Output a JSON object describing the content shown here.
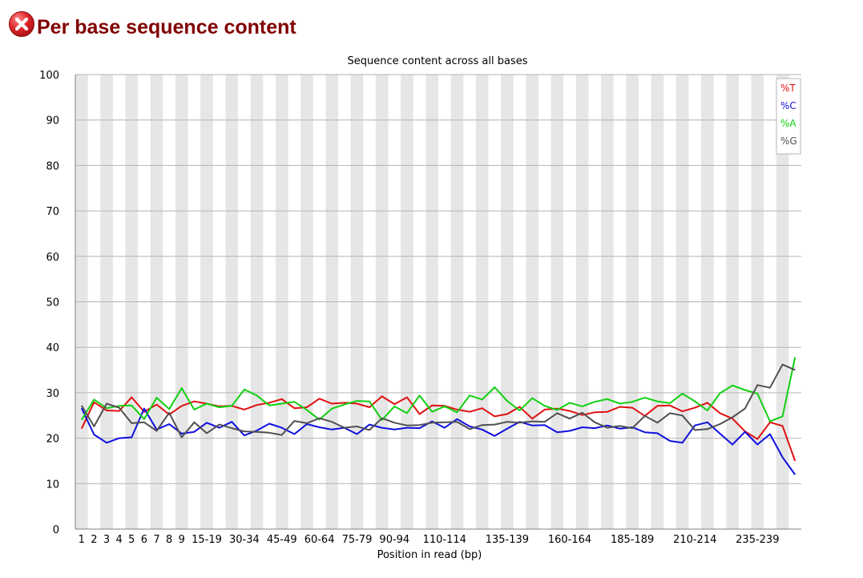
{
  "header": {
    "status": "fail",
    "status_icon": "error-cross-icon",
    "status_color": "#e0262b",
    "title": "Per base sequence content"
  },
  "chart_data": {
    "type": "line",
    "title": "Sequence content across all bases",
    "xlabel": "Position in read (bp)",
    "ylabel": "",
    "ylim": [
      0,
      100
    ],
    "yticks": [
      0,
      10,
      20,
      30,
      40,
      50,
      60,
      70,
      80,
      90,
      100
    ],
    "grid": true,
    "legend_position": "top-right",
    "categories": [
      "1",
      "2",
      "3",
      "4",
      "5",
      "6",
      "7",
      "8",
      "9",
      "10-14",
      "15-19",
      "20-24",
      "25-29",
      "30-34",
      "35-39",
      "40-44",
      "45-49",
      "50-54",
      "55-59",
      "60-64",
      "65-69",
      "70-74",
      "75-79",
      "80-84",
      "85-89",
      "90-94",
      "95-99",
      "100-104",
      "105-109",
      "110-114",
      "115-119",
      "120-124",
      "125-129",
      "130-134",
      "135-139",
      "140-144",
      "145-149",
      "150-154",
      "155-159",
      "160-164",
      "165-169",
      "170-174",
      "175-179",
      "180-184",
      "185-189",
      "190-194",
      "195-199",
      "200-204",
      "205-209",
      "210-214",
      "215-219",
      "220-224",
      "225-229",
      "230-234",
      "235-239",
      "240-244",
      "245-249",
      "250-251"
    ],
    "tick_labels": [
      "1",
      "2",
      "3",
      "4",
      "5",
      "6",
      "7",
      "8",
      "9",
      "15-19",
      "30-34",
      "45-49",
      "60-64",
      "75-79",
      "90-94",
      "110-114",
      "135-139",
      "160-164",
      "185-189",
      "210-214",
      "235-239"
    ],
    "series": [
      {
        "name": "%T",
        "color": "#e01010",
        "values": [
          22.1,
          27.9,
          26.1,
          26.0,
          29.0,
          25.8,
          27.4,
          25.2,
          27.1,
          28.1,
          27.6,
          27.0,
          27.1,
          26.3,
          27.3,
          27.8,
          28.6,
          26.6,
          26.8,
          28.7,
          27.6,
          27.8,
          27.6,
          26.8,
          29.2,
          27.5,
          29.0,
          25.3,
          27.2,
          27.1,
          26.3,
          25.8,
          26.6,
          24.8,
          25.3,
          26.9,
          24.3,
          26.3,
          26.5,
          26.0,
          25.1,
          25.7,
          25.8,
          26.9,
          26.7,
          24.9,
          27.1,
          27.2,
          25.9,
          26.7,
          27.8,
          25.5,
          24.3,
          21.5,
          19.8,
          23.5,
          22.7,
          15.0
        ]
      },
      {
        "name": "%C",
        "color": "#1010e0",
        "values": [
          26.6,
          20.8,
          19.0,
          20.0,
          20.2,
          26.5,
          21.9,
          23.1,
          21.0,
          21.4,
          23.4,
          22.3,
          23.6,
          20.6,
          21.7,
          23.2,
          22.3,
          20.9,
          23.1,
          22.4,
          21.9,
          22.3,
          20.9,
          23.0,
          22.3,
          21.9,
          22.3,
          22.2,
          23.7,
          22.3,
          24.2,
          22.6,
          21.9,
          20.5,
          22.1,
          23.6,
          22.8,
          22.9,
          21.3,
          21.6,
          22.4,
          22.2,
          22.8,
          22.1,
          22.4,
          21.3,
          21.1,
          19.4,
          19.0,
          22.8,
          23.5,
          21.0,
          18.6,
          21.4,
          18.6,
          20.9,
          15.8,
          12.0
        ]
      },
      {
        "name": "%A",
        "color": "#10d010",
        "values": [
          24.0,
          28.5,
          26.6,
          27.1,
          27.2,
          24.2,
          28.9,
          26.4,
          31.0,
          26.3,
          27.6,
          26.8,
          27.1,
          30.7,
          29.4,
          27.2,
          27.6,
          28.0,
          26.2,
          24.1,
          26.5,
          27.4,
          28.2,
          28.1,
          24.0,
          27.0,
          25.5,
          29.4,
          25.8,
          27.0,
          25.7,
          29.4,
          28.5,
          31.2,
          28.2,
          26.1,
          28.8,
          27.1,
          26.2,
          27.8,
          27.0,
          28.0,
          28.6,
          27.6,
          28.0,
          28.9,
          28.1,
          27.7,
          29.8,
          28.1,
          26.1,
          29.9,
          31.6,
          30.6,
          29.8,
          23.7,
          24.8,
          37.8
        ]
      },
      {
        "name": "%G",
        "color": "#505050",
        "values": [
          27.2,
          22.6,
          27.6,
          26.7,
          23.3,
          23.5,
          21.6,
          25.6,
          20.2,
          23.5,
          21.1,
          23.0,
          22.2,
          21.5,
          21.4,
          21.2,
          20.7,
          23.8,
          23.3,
          24.4,
          23.6,
          22.3,
          22.6,
          21.8,
          24.4,
          23.4,
          22.8,
          22.9,
          23.4,
          23.5,
          23.6,
          22.0,
          22.9,
          23.0,
          23.6,
          23.4,
          23.7,
          23.6,
          25.5,
          24.3,
          25.6,
          23.5,
          22.3,
          22.7,
          22.2,
          24.9,
          23.4,
          25.5,
          25.0,
          21.8,
          22.0,
          23.1,
          24.6,
          26.5,
          31.7,
          31.1,
          36.2,
          35.0
        ]
      }
    ]
  }
}
